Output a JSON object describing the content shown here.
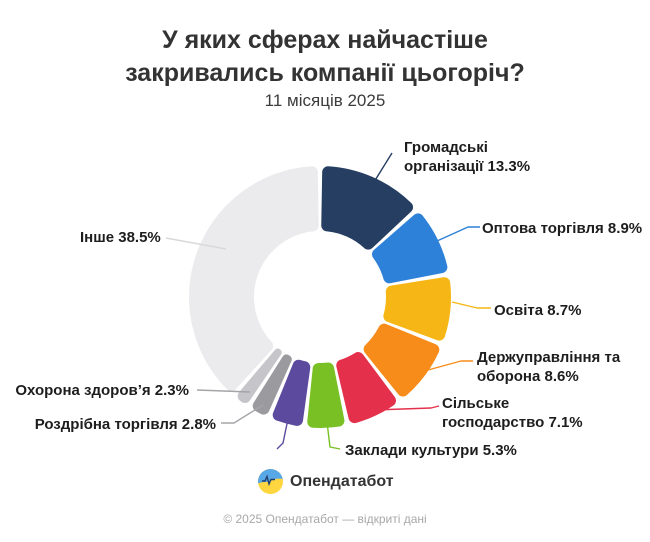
{
  "title": {
    "line1": "У яких сферах найчастіше",
    "line2": "закривались компанії цьогоріч?",
    "subtitle": "11 місяців 2025"
  },
  "chart_data": {
    "type": "pie",
    "donut": true,
    "unit": "%",
    "title": "У яких сферах найчастіше закривались компанії цьогоріч?",
    "subtitle": "11 місяців 2025",
    "legend": "none, callout labels with leader lines",
    "slices": [
      {
        "label": "Громадські організації",
        "value": 13.3,
        "color": "#263e61",
        "display": "Громадські\nорганізації 13.3%"
      },
      {
        "label": "Оптова торгівля",
        "value": 8.9,
        "color": "#2e81d8",
        "display": "Оптова торгівля 8.9%"
      },
      {
        "label": "Освіта",
        "value": 8.7,
        "color": "#f6b716",
        "display": "Освіта 8.7%"
      },
      {
        "label": "Держуправління та оборона",
        "value": 8.6,
        "color": "#f78c1b",
        "display": "Держуправління та\nоборона 8.6%"
      },
      {
        "label": "Сільське господарство",
        "value": 7.1,
        "color": "#e4304a",
        "display": "Сільське\nгосподарство 7.1%"
      },
      {
        "label": "Заклади культури",
        "value": 5.3,
        "color": "#78c024",
        "display": "Заклади культури 5.3%"
      },
      {
        "label": "",
        "value": 4.5,
        "color": "#5c4a9e",
        "display": ""
      },
      {
        "label": "Роздрібна торгівля",
        "value": 2.8,
        "color": "#9b9b9f",
        "display": "Роздрібна торгівля 2.8%"
      },
      {
        "label": "Охорона здоров’я",
        "value": 2.3,
        "color": "#c6c6ca",
        "display": "Охорона здоров’я 2.3%"
      },
      {
        "label": "Інше",
        "value": 38.5,
        "color": "#ebebed",
        "display": "Інше 38.5%"
      }
    ]
  },
  "branding": {
    "logo_text": "Опендатабот",
    "flag_blue": "#58a7e6",
    "flag_yellow": "#ffd640"
  },
  "footer": {
    "copyright": "© 2025 Опендатабот — відкриті дані"
  }
}
